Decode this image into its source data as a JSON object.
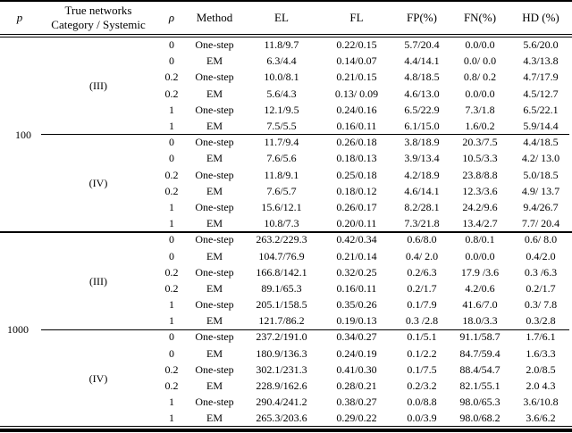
{
  "table": {
    "headers": {
      "p": "p",
      "true_networks_line1": "True networks",
      "true_networks_line2": "Category / Systemic",
      "rho": "ρ",
      "method": "Method",
      "el": "EL",
      "fl": "FL",
      "fp": "FP(%)",
      "fn": "FN(%)",
      "hd": "HD (%)"
    },
    "groups": [
      {
        "p_label": "100",
        "subgroups": [
          {
            "category_label": "(III)",
            "rows": [
              {
                "rho": "0",
                "method": "One-step",
                "el": "11.8/9.7",
                "fl": "0.22/0.15",
                "fp": "5.7/20.4",
                "fn": "0.0/0.0",
                "hd": "5.6/20.0"
              },
              {
                "rho": "0",
                "method": "EM",
                "el": "6.3/4.4",
                "fl": "0.14/0.07",
                "fp": "4.4/14.1",
                "fn": "0.0/ 0.0",
                "hd": "4.3/13.8"
              },
              {
                "rho": "0.2",
                "method": "One-step",
                "el": "10.0/8.1",
                "fl": "0.21/0.15",
                "fp": "4.8/18.5",
                "fn": "0.8/ 0.2",
                "hd": "4.7/17.9"
              },
              {
                "rho": "0.2",
                "method": "EM",
                "el": "5.6/4.3",
                "fl": "0.13/ 0.09",
                "fp": "4.6/13.0",
                "fn": "0.0/0.0",
                "hd": "4.5/12.7"
              },
              {
                "rho": "1",
                "method": "One-step",
                "el": "12.1/9.5",
                "fl": "0.24/0.16",
                "fp": "6.5/22.9",
                "fn": "7.3/1.8",
                "hd": "6.5/22.1"
              },
              {
                "rho": "1",
                "method": "EM",
                "el": "7.5/5.5",
                "fl": "0.16/0.11",
                "fp": "6.1/15.0",
                "fn": "1.6/0.2",
                "hd": "5.9/14.4"
              }
            ]
          },
          {
            "category_label": "(IV)",
            "rows": [
              {
                "rho": "0",
                "method": "One-step",
                "el": "11.7/9.4",
                "fl": "0.26/0.18",
                "fp": "3.8/18.9",
                "fn": "20.3/7.5",
                "hd": "4.4/18.5"
              },
              {
                "rho": "0",
                "method": "EM",
                "el": "7.6/5.6",
                "fl": "0.18/0.13",
                "fp": "3.9/13.4",
                "fn": "10.5/3.3",
                "hd": "4.2/ 13.0"
              },
              {
                "rho": "0.2",
                "method": "One-step",
                "el": "11.8/9.1",
                "fl": "0.25/0.18",
                "fp": "4.2/18.9",
                "fn": "23.8/8.8",
                "hd": "5.0/18.5"
              },
              {
                "rho": "0.2",
                "method": "EM",
                "el": "7.6/5.7",
                "fl": "0.18/0.12",
                "fp": "4.6/14.1",
                "fn": "12.3/3.6",
                "hd": "4.9/ 13.7"
              },
              {
                "rho": "1",
                "method": "One-step",
                "el": "15.6/12.1",
                "fl": "0.26/0.17",
                "fp": "8.2/28.1",
                "fn": "24.2/9.6",
                "hd": "9.4/26.7"
              },
              {
                "rho": "1",
                "method": "EM",
                "el": "10.8/7.3",
                "fl": "0.20/0.11",
                "fp": "7.3/21.8",
                "fn": "13.4/2.7",
                "hd": "7.7/ 20.4"
              }
            ]
          }
        ]
      },
      {
        "p_label": "1000",
        "subgroups": [
          {
            "category_label": "(III)",
            "rows": [
              {
                "rho": "0",
                "method": "One-step",
                "el": "263.2/229.3",
                "fl": "0.42/0.34",
                "fp": "0.6/8.0",
                "fn": "0.8/0.1",
                "hd": "0.6/ 8.0"
              },
              {
                "rho": "0",
                "method": "EM",
                "el": "104.7/76.9",
                "fl": "0.21/0.14",
                "fp": "0.4/ 2.0",
                "fn": "0.0/0.0",
                "hd": "0.4/2.0"
              },
              {
                "rho": "0.2",
                "method": "One-step",
                "el": "166.8/142.1",
                "fl": "0.32/0.25",
                "fp": "0.2/6.3",
                "fn": "17.9 /3.6",
                "hd": "0.3 /6.3"
              },
              {
                "rho": "0.2",
                "method": "EM",
                "el": "89.1/65.3",
                "fl": "0.16/0.11",
                "fp": "0.2/1.7",
                "fn": "4.2/0.6",
                "hd": "0.2/1.7"
              },
              {
                "rho": "1",
                "method": "One-step",
                "el": "205.1/158.5",
                "fl": "0.35/0.26",
                "fp": "0.1/7.9",
                "fn": "41.6/7.0",
                "hd": "0.3/ 7.8"
              },
              {
                "rho": "1",
                "method": "EM",
                "el": "121.7/86.2",
                "fl": "0.19/0.13",
                "fp": "0.3 /2.8",
                "fn": "18.0/3.3",
                "hd": "0.3/2.8"
              }
            ]
          },
          {
            "category_label": "(IV)",
            "rows": [
              {
                "rho": "0",
                "method": "One-step",
                "el": "237.2/191.0",
                "fl": "0.34/0.27",
                "fp": "0.1/5.1",
                "fn": "91.1/58.7",
                "hd": "1.7/6.1"
              },
              {
                "rho": "0",
                "method": "EM",
                "el": "180.9/136.3",
                "fl": "0.24/0.19",
                "fp": "0.1/2.2",
                "fn": "84.7/59.4",
                "hd": "1.6/3.3"
              },
              {
                "rho": "0.2",
                "method": "One-step",
                "el": "302.1/231.3",
                "fl": "0.41/0.30",
                "fp": "0.1/7.5",
                "fn": "88.4/54.7",
                "hd": "2.0/8.5"
              },
              {
                "rho": "0.2",
                "method": "EM",
                "el": "228.9/162.6",
                "fl": "0.28/0.21",
                "fp": "0.2/3.2",
                "fn": "82.1/55.1",
                "hd": "2.0 4.3"
              },
              {
                "rho": "1",
                "method": "One-step",
                "el": "290.4/241.2",
                "fl": "0.38/0.27",
                "fp": "0.0/8.8",
                "fn": "98.0/65.3",
                "hd": "3.6/10.8"
              },
              {
                "rho": "1",
                "method": "EM",
                "el": "265.3/203.6",
                "fl": "0.29/0.22",
                "fp": "0.0/3.9",
                "fn": "98.0/68.2",
                "hd": "3.6/6.2"
              }
            ]
          }
        ]
      }
    ]
  }
}
